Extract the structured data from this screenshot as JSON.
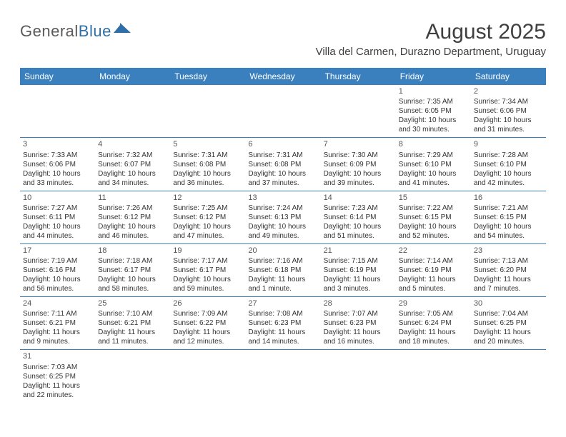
{
  "logo": {
    "text1": "General",
    "text2": "Blue"
  },
  "title": "August 2025",
  "location": "Villa del Carmen, Durazno Department, Uruguay",
  "style": {
    "header_bg": "#3a80bf",
    "header_fg": "#ffffff",
    "row_border": "#3a80bf",
    "page_bg": "#ffffff",
    "text_color": "#333333",
    "title_color": "#404040",
    "logo_color1": "#5a5a5a",
    "logo_color2": "#2f6fa8",
    "title_fontsize": 30,
    "location_fontsize": 15,
    "dayheader_fontsize": 12,
    "cell_fontsize": 10
  },
  "day_names": [
    "Sunday",
    "Monday",
    "Tuesday",
    "Wednesday",
    "Thursday",
    "Friday",
    "Saturday"
  ],
  "weeks": [
    [
      null,
      null,
      null,
      null,
      null,
      {
        "n": "1",
        "rise": "Sunrise: 7:35 AM",
        "set": "Sunset: 6:05 PM",
        "dl1": "Daylight: 10 hours",
        "dl2": "and 30 minutes."
      },
      {
        "n": "2",
        "rise": "Sunrise: 7:34 AM",
        "set": "Sunset: 6:06 PM",
        "dl1": "Daylight: 10 hours",
        "dl2": "and 31 minutes."
      }
    ],
    [
      {
        "n": "3",
        "rise": "Sunrise: 7:33 AM",
        "set": "Sunset: 6:06 PM",
        "dl1": "Daylight: 10 hours",
        "dl2": "and 33 minutes."
      },
      {
        "n": "4",
        "rise": "Sunrise: 7:32 AM",
        "set": "Sunset: 6:07 PM",
        "dl1": "Daylight: 10 hours",
        "dl2": "and 34 minutes."
      },
      {
        "n": "5",
        "rise": "Sunrise: 7:31 AM",
        "set": "Sunset: 6:08 PM",
        "dl1": "Daylight: 10 hours",
        "dl2": "and 36 minutes."
      },
      {
        "n": "6",
        "rise": "Sunrise: 7:31 AM",
        "set": "Sunset: 6:08 PM",
        "dl1": "Daylight: 10 hours",
        "dl2": "and 37 minutes."
      },
      {
        "n": "7",
        "rise": "Sunrise: 7:30 AM",
        "set": "Sunset: 6:09 PM",
        "dl1": "Daylight: 10 hours",
        "dl2": "and 39 minutes."
      },
      {
        "n": "8",
        "rise": "Sunrise: 7:29 AM",
        "set": "Sunset: 6:10 PM",
        "dl1": "Daylight: 10 hours",
        "dl2": "and 41 minutes."
      },
      {
        "n": "9",
        "rise": "Sunrise: 7:28 AM",
        "set": "Sunset: 6:10 PM",
        "dl1": "Daylight: 10 hours",
        "dl2": "and 42 minutes."
      }
    ],
    [
      {
        "n": "10",
        "rise": "Sunrise: 7:27 AM",
        "set": "Sunset: 6:11 PM",
        "dl1": "Daylight: 10 hours",
        "dl2": "and 44 minutes."
      },
      {
        "n": "11",
        "rise": "Sunrise: 7:26 AM",
        "set": "Sunset: 6:12 PM",
        "dl1": "Daylight: 10 hours",
        "dl2": "and 46 minutes."
      },
      {
        "n": "12",
        "rise": "Sunrise: 7:25 AM",
        "set": "Sunset: 6:12 PM",
        "dl1": "Daylight: 10 hours",
        "dl2": "and 47 minutes."
      },
      {
        "n": "13",
        "rise": "Sunrise: 7:24 AM",
        "set": "Sunset: 6:13 PM",
        "dl1": "Daylight: 10 hours",
        "dl2": "and 49 minutes."
      },
      {
        "n": "14",
        "rise": "Sunrise: 7:23 AM",
        "set": "Sunset: 6:14 PM",
        "dl1": "Daylight: 10 hours",
        "dl2": "and 51 minutes."
      },
      {
        "n": "15",
        "rise": "Sunrise: 7:22 AM",
        "set": "Sunset: 6:15 PM",
        "dl1": "Daylight: 10 hours",
        "dl2": "and 52 minutes."
      },
      {
        "n": "16",
        "rise": "Sunrise: 7:21 AM",
        "set": "Sunset: 6:15 PM",
        "dl1": "Daylight: 10 hours",
        "dl2": "and 54 minutes."
      }
    ],
    [
      {
        "n": "17",
        "rise": "Sunrise: 7:19 AM",
        "set": "Sunset: 6:16 PM",
        "dl1": "Daylight: 10 hours",
        "dl2": "and 56 minutes."
      },
      {
        "n": "18",
        "rise": "Sunrise: 7:18 AM",
        "set": "Sunset: 6:17 PM",
        "dl1": "Daylight: 10 hours",
        "dl2": "and 58 minutes."
      },
      {
        "n": "19",
        "rise": "Sunrise: 7:17 AM",
        "set": "Sunset: 6:17 PM",
        "dl1": "Daylight: 10 hours",
        "dl2": "and 59 minutes."
      },
      {
        "n": "20",
        "rise": "Sunrise: 7:16 AM",
        "set": "Sunset: 6:18 PM",
        "dl1": "Daylight: 11 hours",
        "dl2": "and 1 minute."
      },
      {
        "n": "21",
        "rise": "Sunrise: 7:15 AM",
        "set": "Sunset: 6:19 PM",
        "dl1": "Daylight: 11 hours",
        "dl2": "and 3 minutes."
      },
      {
        "n": "22",
        "rise": "Sunrise: 7:14 AM",
        "set": "Sunset: 6:19 PM",
        "dl1": "Daylight: 11 hours",
        "dl2": "and 5 minutes."
      },
      {
        "n": "23",
        "rise": "Sunrise: 7:13 AM",
        "set": "Sunset: 6:20 PM",
        "dl1": "Daylight: 11 hours",
        "dl2": "and 7 minutes."
      }
    ],
    [
      {
        "n": "24",
        "rise": "Sunrise: 7:11 AM",
        "set": "Sunset: 6:21 PM",
        "dl1": "Daylight: 11 hours",
        "dl2": "and 9 minutes."
      },
      {
        "n": "25",
        "rise": "Sunrise: 7:10 AM",
        "set": "Sunset: 6:21 PM",
        "dl1": "Daylight: 11 hours",
        "dl2": "and 11 minutes."
      },
      {
        "n": "26",
        "rise": "Sunrise: 7:09 AM",
        "set": "Sunset: 6:22 PM",
        "dl1": "Daylight: 11 hours",
        "dl2": "and 12 minutes."
      },
      {
        "n": "27",
        "rise": "Sunrise: 7:08 AM",
        "set": "Sunset: 6:23 PM",
        "dl1": "Daylight: 11 hours",
        "dl2": "and 14 minutes."
      },
      {
        "n": "28",
        "rise": "Sunrise: 7:07 AM",
        "set": "Sunset: 6:23 PM",
        "dl1": "Daylight: 11 hours",
        "dl2": "and 16 minutes."
      },
      {
        "n": "29",
        "rise": "Sunrise: 7:05 AM",
        "set": "Sunset: 6:24 PM",
        "dl1": "Daylight: 11 hours",
        "dl2": "and 18 minutes."
      },
      {
        "n": "30",
        "rise": "Sunrise: 7:04 AM",
        "set": "Sunset: 6:25 PM",
        "dl1": "Daylight: 11 hours",
        "dl2": "and 20 minutes."
      }
    ],
    [
      {
        "n": "31",
        "rise": "Sunrise: 7:03 AM",
        "set": "Sunset: 6:25 PM",
        "dl1": "Daylight: 11 hours",
        "dl2": "and 22 minutes."
      },
      null,
      null,
      null,
      null,
      null,
      null
    ]
  ]
}
